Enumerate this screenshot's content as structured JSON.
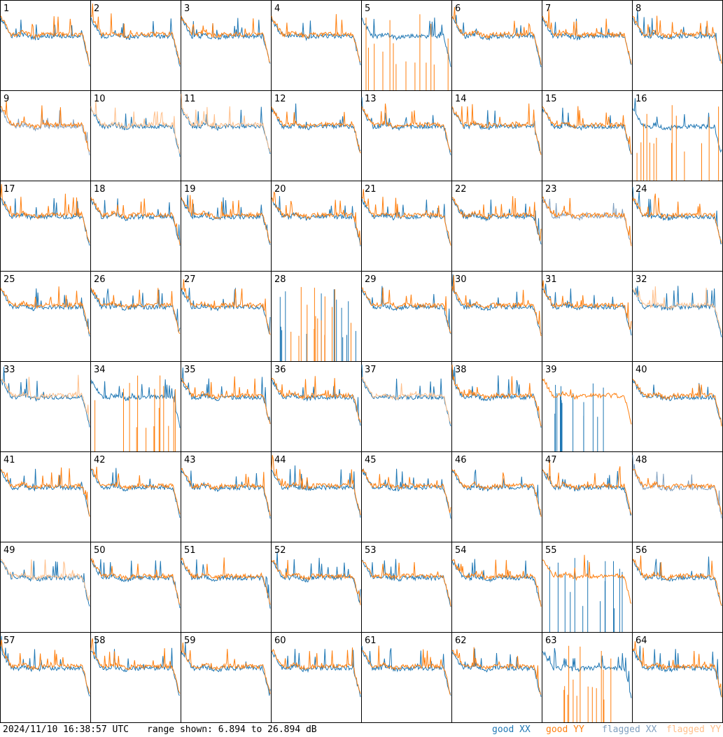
{
  "chart_data": {
    "type": "line",
    "layout": {
      "rows": 8,
      "cols": 8
    },
    "panels": [
      "1",
      "2",
      "3",
      "4",
      "5",
      "6",
      "7",
      "8",
      "9",
      "10",
      "11",
      "12",
      "13",
      "14",
      "15",
      "16",
      "17",
      "18",
      "19",
      "20",
      "21",
      "22",
      "23",
      "24",
      "25",
      "26",
      "27",
      "28",
      "29",
      "30",
      "31",
      "32",
      "33",
      "34",
      "35",
      "36",
      "37",
      "38",
      "39",
      "40",
      "41",
      "42",
      "43",
      "44",
      "45",
      "46",
      "47",
      "48",
      "49",
      "50",
      "51",
      "52",
      "53",
      "54",
      "55",
      "56",
      "57",
      "58",
      "59",
      "60",
      "61",
      "62",
      "63",
      "64"
    ],
    "series": [
      {
        "name": "good XX",
        "color": "#1f77b4"
      },
      {
        "name": "good YY",
        "color": "#ff7f0e"
      },
      {
        "name": "flagged XX",
        "color": "#7f9fbf"
      },
      {
        "name": "flagged YY",
        "color": "#ffbf8a"
      }
    ],
    "ylim": [
      6.894,
      26.894
    ],
    "flagged": {
      "xx": [
        "9",
        "23",
        "48"
      ],
      "yy": [
        "10",
        "11",
        "32",
        "33",
        "37",
        "49"
      ]
    },
    "spiky": {
      "xx": [
        "39",
        "55"
      ],
      "yy": [
        "5",
        "16",
        "34",
        "63"
      ],
      "both": [
        "28"
      ]
    }
  },
  "footer": {
    "timestamp": "2024/11/10 16:38:57 UTC",
    "range": "range shown: 6.894 to 26.894 dB",
    "legend": [
      "good XX",
      "good YY",
      "flagged XX",
      "flagged YY"
    ]
  }
}
